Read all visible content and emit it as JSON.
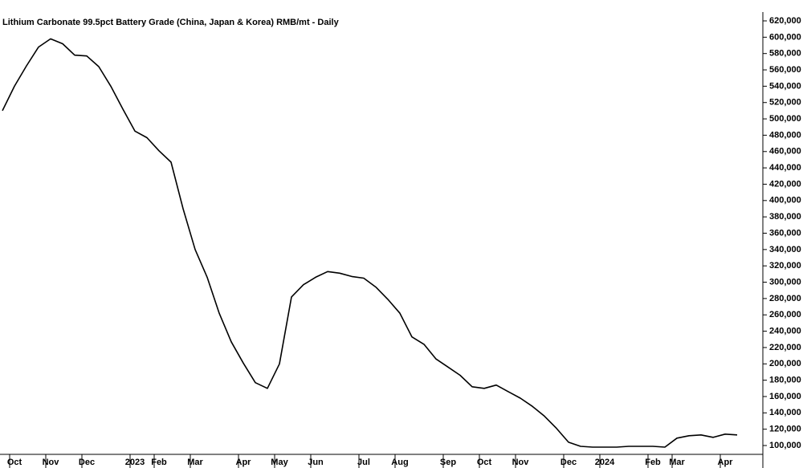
{
  "chart_data": {
    "type": "line",
    "title": "Lithium Carbonate 99.5pct Battery Grade (China, Japan & Korea) RMB/mt - Daily",
    "categories": [
      null,
      "Oct",
      null,
      null,
      "Nov",
      null,
      null,
      "Dec",
      null,
      null,
      null,
      "2023",
      null,
      "Feb",
      null,
      null,
      "Mar",
      null,
      null,
      null,
      "Apr",
      null,
      null,
      "May",
      null,
      null,
      "Jun",
      null,
      null,
      null,
      "Jul",
      null,
      null,
      "Aug",
      null,
      null,
      null,
      "Sep",
      null,
      null,
      "Oct",
      null,
      null,
      "Nov",
      null,
      null,
      null,
      "Dec",
      null,
      null,
      "2024",
      null,
      null,
      null,
      "Feb",
      null,
      "Mar",
      null,
      null,
      null,
      "Apr",
      null
    ],
    "values": [
      510000,
      540000,
      565000,
      588000,
      598000,
      592000,
      578000,
      577000,
      564000,
      540000,
      512000,
      485000,
      477000,
      461000,
      447000,
      390000,
      340000,
      306000,
      262000,
      227000,
      201000,
      177000,
      170000,
      200000,
      282000,
      297000,
      306000,
      313000,
      311000,
      307000,
      305000,
      294000,
      279000,
      262000,
      233000,
      224000,
      206000,
      196000,
      186000,
      172000,
      170000,
      174000,
      166000,
      158000,
      148000,
      136000,
      121000,
      104000,
      99000,
      98000,
      98000,
      98000,
      99000,
      99000,
      99000,
      98000,
      109000,
      112000,
      113000,
      110000,
      114000,
      113000
    ],
    "color": "#000000",
    "ylim": [
      100000,
      620000
    ],
    "yticks": [
      {
        "value": 100000,
        "label": "100,000"
      },
      {
        "value": 120000,
        "label": "120,000"
      },
      {
        "value": 140000,
        "label": "140,000"
      },
      {
        "value": 160000,
        "label": "160,000"
      },
      {
        "value": 180000,
        "label": "180,000"
      },
      {
        "value": 200000,
        "label": "200,000"
      },
      {
        "value": 220000,
        "label": "220,000"
      },
      {
        "value": 240000,
        "label": "240,000"
      },
      {
        "value": 260000,
        "label": "260,000"
      },
      {
        "value": 280000,
        "label": "280,000"
      },
      {
        "value": 300000,
        "label": "300,000"
      },
      {
        "value": 320000,
        "label": "320,000"
      },
      {
        "value": 340000,
        "label": "340,000"
      },
      {
        "value": 360000,
        "label": "360,000"
      },
      {
        "value": 380000,
        "label": "380,000"
      },
      {
        "value": 400000,
        "label": "400,000"
      },
      {
        "value": 420000,
        "label": "420,000"
      },
      {
        "value": 440000,
        "label": "440,000"
      },
      {
        "value": 460000,
        "label": "460,000"
      },
      {
        "value": 480000,
        "label": "480,000"
      },
      {
        "value": 500000,
        "label": "500,000"
      },
      {
        "value": 520000,
        "label": "520,000"
      },
      {
        "value": 540000,
        "label": "540,000"
      },
      {
        "value": 560000,
        "label": "560,000"
      },
      {
        "value": 580000,
        "label": "580,000"
      },
      {
        "value": 600000,
        "label": "600,000"
      },
      {
        "value": 620000,
        "label": "620,000"
      }
    ],
    "grid": false
  }
}
